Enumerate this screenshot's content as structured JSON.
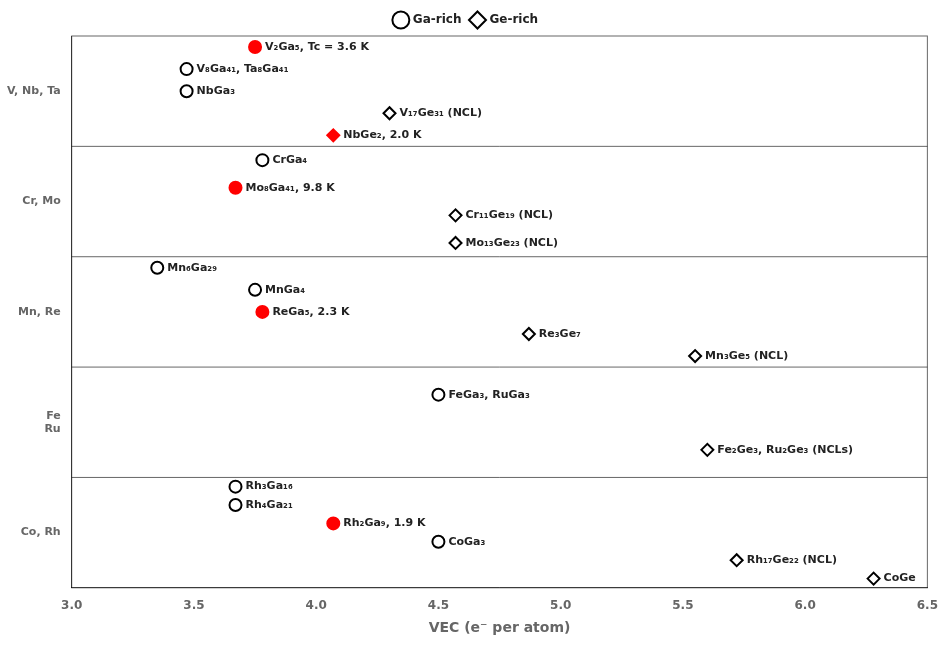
{
  "chart_data": {
    "type": "scatter",
    "xlabel": "VEC (e⁻ per atom)",
    "xlim": [
      3.0,
      6.5
    ],
    "xticks": [
      {
        "value": 3.0,
        "label": "3.0"
      },
      3.5,
      {
        "value": 4.0,
        "label": "4.0"
      },
      4.5,
      {
        "value": 5.0,
        "label": "5.0"
      },
      5.5,
      {
        "value": 6.0,
        "label": "6.0"
      },
      6.5
    ],
    "categories": [
      "V, Nb, Ta",
      "Cr, Mo",
      "Mn, Re",
      "Fe\nRu",
      "Co, Rh"
    ],
    "legend": "top",
    "series": [
      {
        "name": "Ga-rich",
        "marker": "circle",
        "x": [
          3.75,
          3.47,
          3.47,
          3.78,
          3.67,
          3.35,
          3.75,
          3.78,
          4.5,
          3.67,
          3.67,
          4.07,
          4.5
        ],
        "y": [
          "V, Nb, Ta",
          "V, Nb, Ta",
          "V, Nb, Ta",
          "Cr, Mo",
          "Cr, Mo",
          "Mn, Re",
          "Mn, Re",
          "Mn, Re",
          "Fe\nRu",
          "Co, Rh",
          "Co, Rh",
          "Co, Rh",
          "Co, Rh"
        ],
        "colors": [
          "red",
          "none",
          "none",
          "none",
          "red",
          "none",
          "none",
          "red",
          "none",
          "none",
          "none",
          "red",
          "none"
        ],
        "labels": [
          "V₂Ga₅, Tc = 3.6 K",
          "V₈Ga₄₁, Ta₈Ga₄₁",
          "NbGa₃",
          "CrGa₄",
          "Mo₈Ga₄₁, 9.8 K",
          "Mn₆Ga₂₉",
          "MnGa₄",
          "ReGa₅, 2.3 K",
          "FeGa₃, RuGa₃",
          "Rh₃Ga₁₆",
          "Rh₄Ga₂₁",
          "Rh₂Ga₉, 1.9 K",
          "CoGa₃"
        ]
      },
      {
        "name": "Ge-rich",
        "marker": "diamond",
        "x": [
          4.3,
          4.07,
          4.57,
          4.57,
          4.87,
          5.55,
          5.6,
          5.72,
          6.28
        ],
        "y": [
          "V, Nb, Ta",
          "V, Nb, Ta",
          "Cr, Mo",
          "Cr, Mo",
          "Mn, Re",
          "Mn, Re",
          "Fe\nRu",
          "Co, Rh",
          "Co, Rh"
        ],
        "colors": [
          "none",
          "red",
          "none",
          "none",
          "none",
          "none",
          "none",
          "none",
          "none"
        ],
        "labels": [
          "V₁₇Ge₃₁ (NCL)",
          "NbGe₂, 2.0 K",
          "Cr₁₁Ge₁₉ (NCL)",
          "Mo₁₃Ge₂₃ (NCL)",
          "Re₃Ge₇",
          "Mn₃Ge₅ (NCL)",
          "Fe₂Ge₃, Ru₂Ge₃ (NCLs)",
          "Rh₁₇Ge₂₂ (NCL)",
          "CoGe"
        ]
      }
    ]
  }
}
